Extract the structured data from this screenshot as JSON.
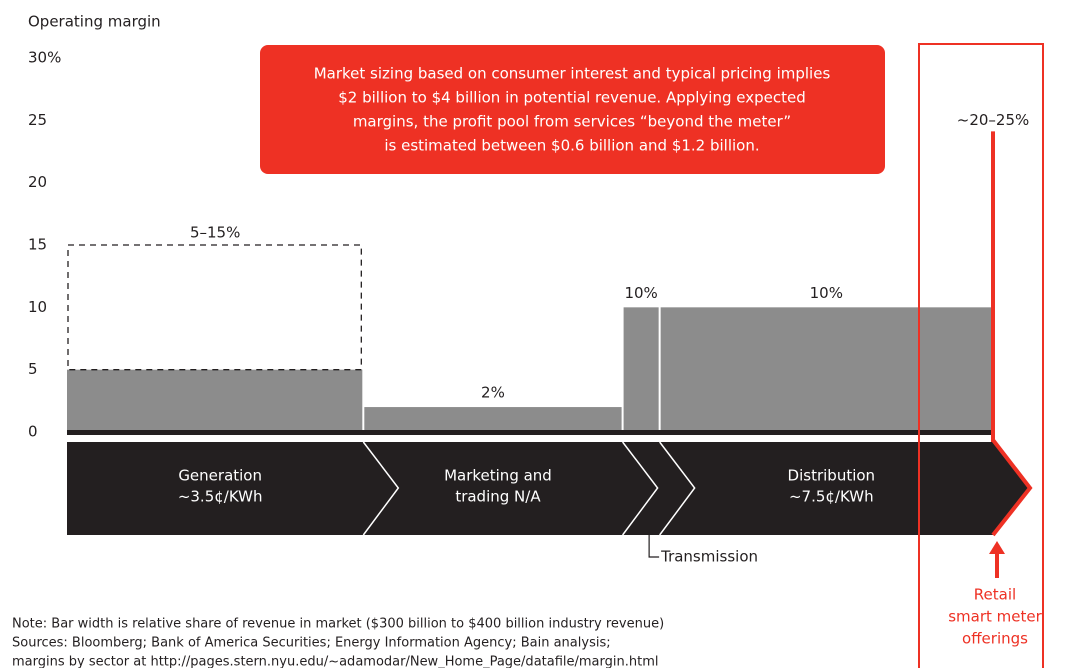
{
  "chart_data": {
    "type": "bar",
    "y_label": "Operating margin",
    "ylim": [
      0,
      30
    ],
    "yticks": [
      0,
      5,
      10,
      15,
      20,
      {
        "value": 30,
        "label": "30%"
      },
      25
    ],
    "segments": [
      {
        "label_lines": [
          "Generation",
          "~3.5¢/KWh"
        ],
        "value": 5,
        "range": [
          5,
          15
        ],
        "range_label": "5–15%",
        "width": 32
      },
      {
        "label_lines": [
          "Marketing and",
          "trading N/A"
        ],
        "value": 2,
        "value_label": "2%",
        "width": 28
      },
      {
        "label_lines": [
          "Transmission"
        ],
        "value": 10,
        "value_label": "10%",
        "width": 4
      },
      {
        "label_lines": [
          "Distribution",
          "~7.5¢/KWh"
        ],
        "value": 10,
        "value_label": "10%",
        "width": 36
      }
    ],
    "retail": {
      "label_lines": [
        "Retail",
        "smart meter",
        "offerings"
      ],
      "range": [
        20,
        25
      ],
      "range_label": "~20–25%"
    },
    "annotation_lines": [
      "Market sizing based on consumer interest and typical pricing implies",
      "$2 billion to $4 billion in potential revenue. Applying expected",
      "margins, the profit pool from services “beyond the meter”",
      "is estimated between $0.6 billion and $1.2 billion."
    ],
    "note_lines": [
      "Note: Bar width is relative share of revenue in market ($300 billion to $400 billion industry revenue)",
      "Sources: Bloomberg; Bank of America Securities; Energy Information Agency; Bain analysis;",
      "margins by sector at http://pages.stern.nyu.edu/~adamodar/New_Home_Page/datafile/margin.html"
    ],
    "colors": {
      "bar": "#8c8c8c",
      "band": "#231f20",
      "accent": "#ee3124"
    }
  }
}
